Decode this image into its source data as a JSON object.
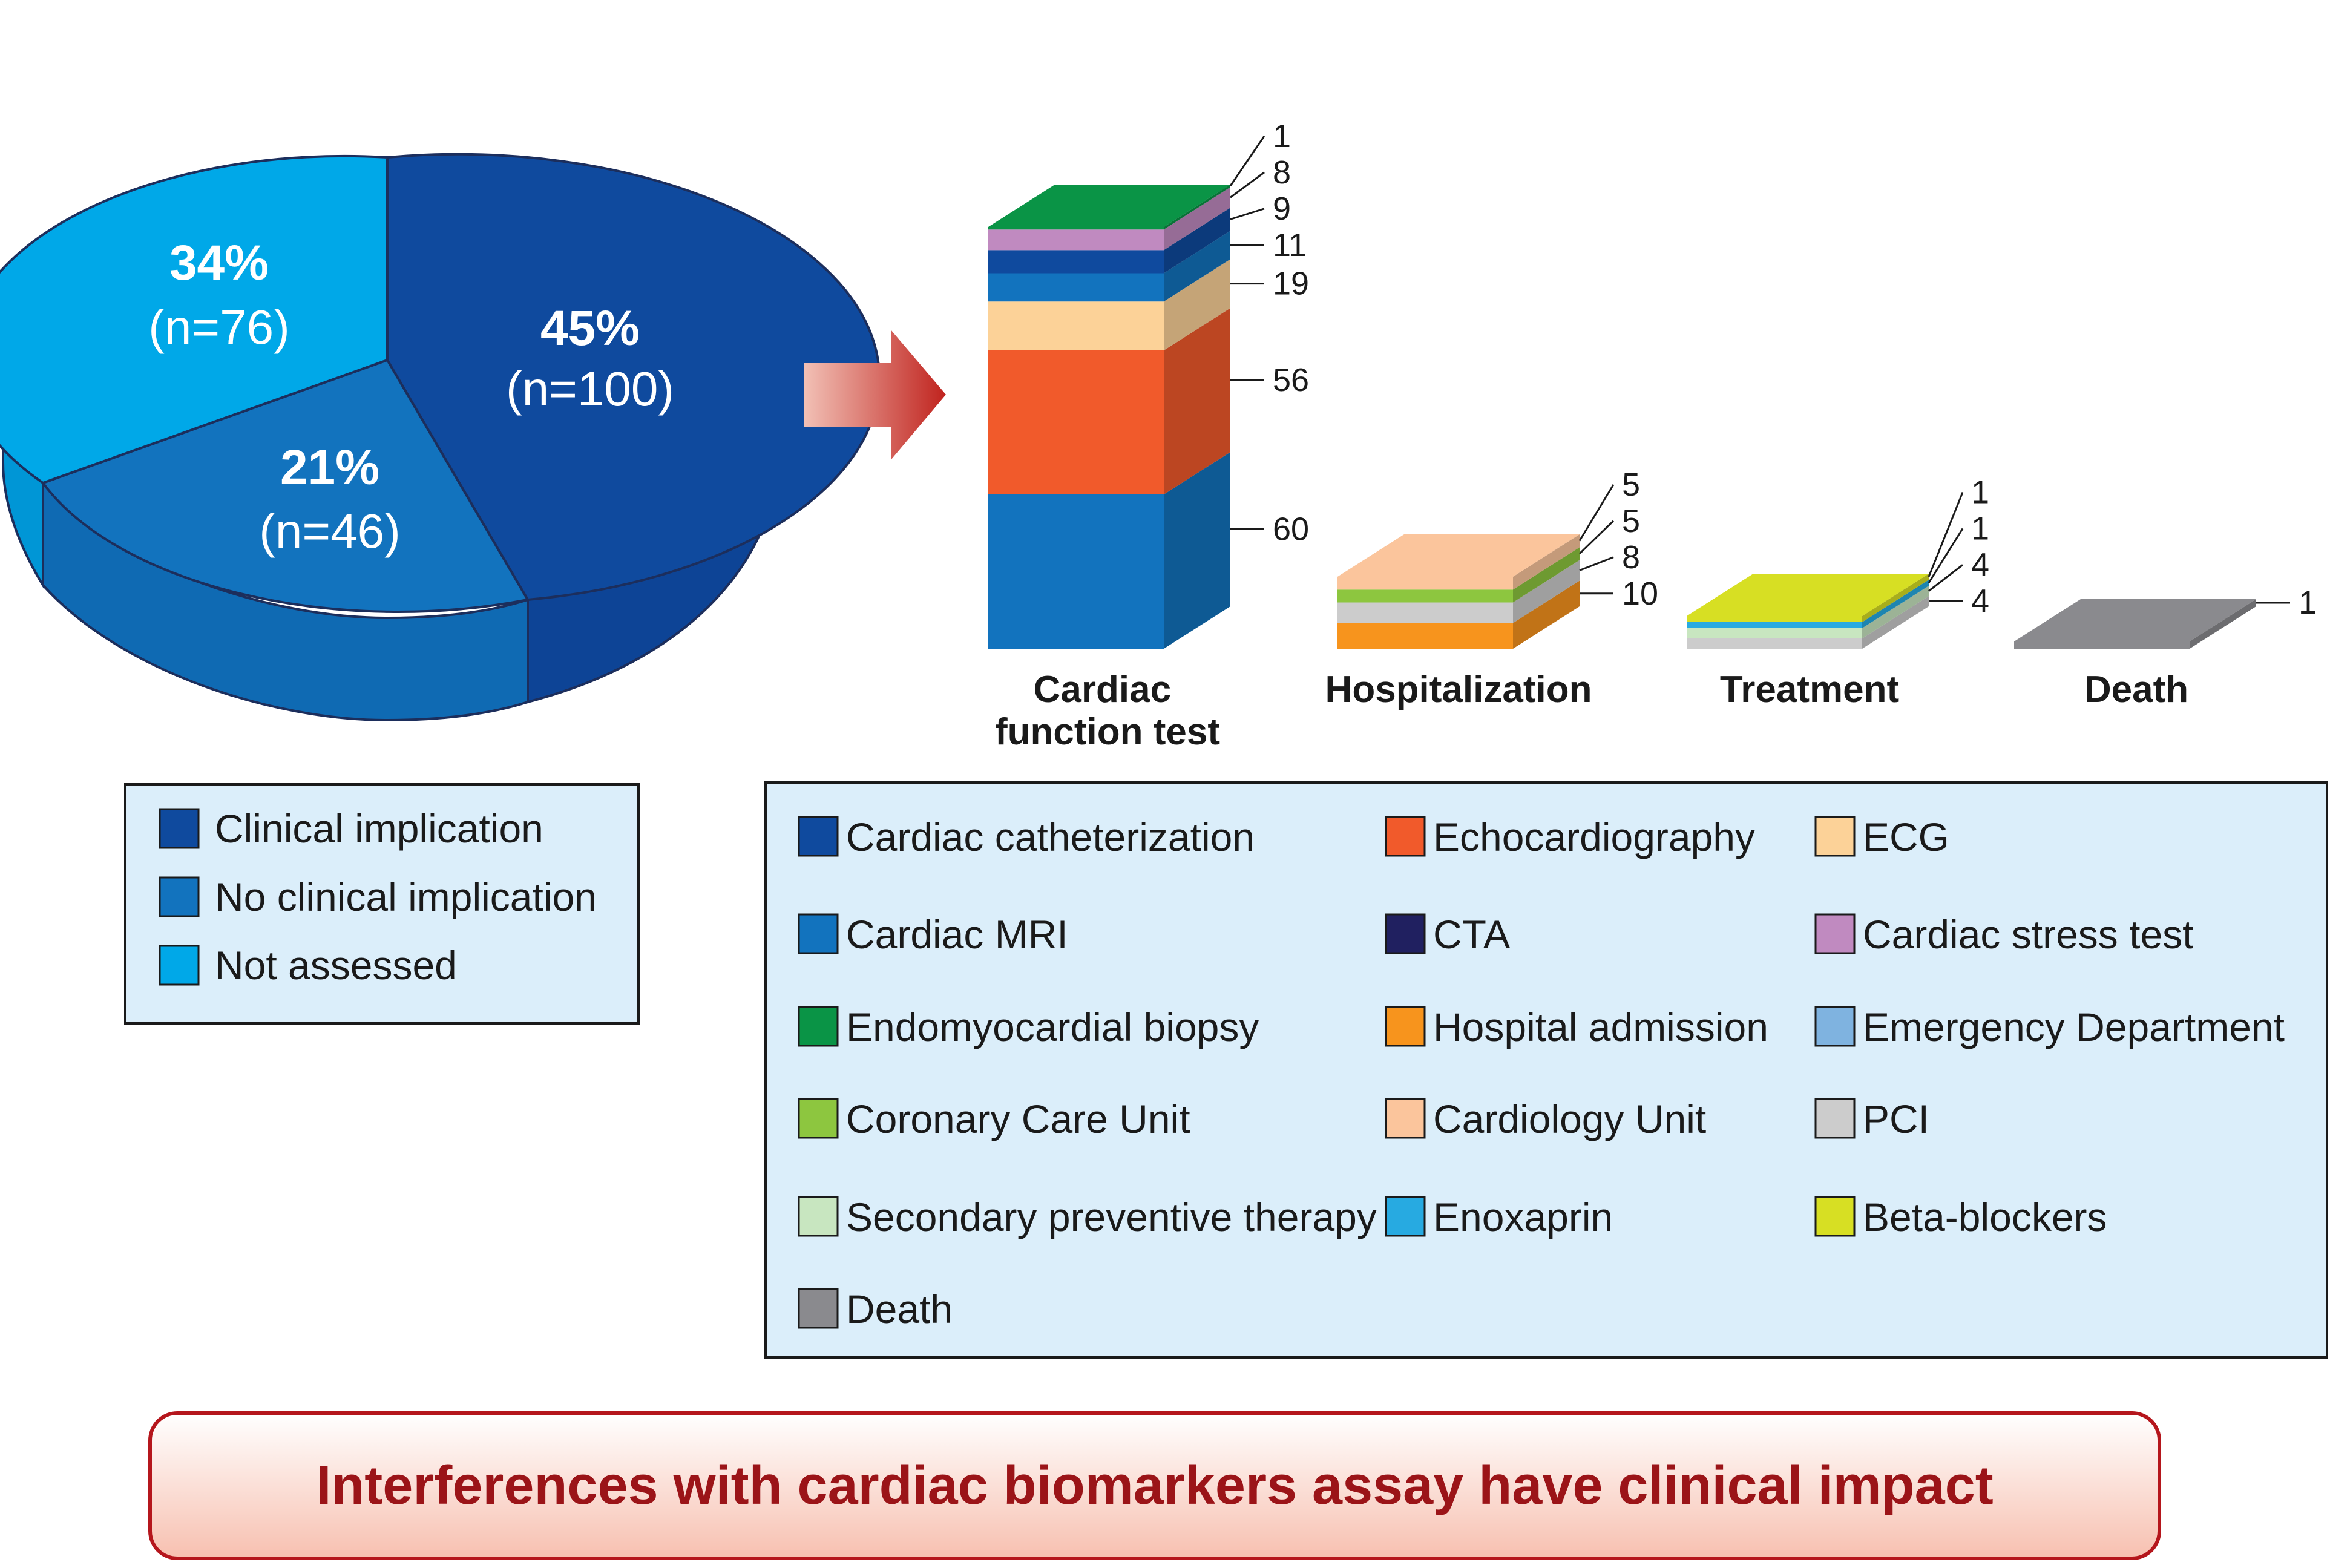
{
  "footer": {
    "text": "Interferences with cardiac biomarkers assay have clinical impact"
  },
  "chart_data": [
    {
      "type": "pie",
      "slices": [
        {
          "label": "Clinical implication",
          "percent": "45%",
          "n": "(n=100)",
          "value": 100,
          "color": "#0f4a9e"
        },
        {
          "label": "No clinical implication",
          "percent": "21%",
          "n": "(n=46)",
          "value": 46,
          "color": "#1273be"
        },
        {
          "label": "Not assessed",
          "percent": "34%",
          "n": "(n=76)",
          "value": 76,
          "color": "#00a8e8"
        }
      ]
    },
    {
      "type": "bar",
      "stacked": true,
      "categories": [
        {
          "label_lines": [
            "Cardiac",
            "function test"
          ]
        },
        {
          "label_lines": [
            "Hospitalization"
          ]
        },
        {
          "label_lines": [
            "Treatment"
          ]
        },
        {
          "label_lines": [
            "Death"
          ]
        }
      ],
      "series_by_category": [
        [
          {
            "name": "Cardiac MRI",
            "value": 60,
            "label": "60"
          },
          {
            "name": "Echocardiography",
            "value": 56,
            "label": "56"
          },
          {
            "name": "ECG",
            "value": 19,
            "label": "19"
          },
          {
            "name": "Cardiac MRI",
            "value": 11,
            "label": "11"
          },
          {
            "name": "Cardiac catheterization",
            "value": 9,
            "label": "9"
          },
          {
            "name": "Cardiac stress test",
            "value": 8,
            "label": "8"
          },
          {
            "name": "Endomyocardial biopsy",
            "value": 1,
            "label": "1"
          }
        ],
        [
          {
            "name": "Hospital admission",
            "value": 10,
            "label": "10"
          },
          {
            "name": "PCI",
            "value": 8,
            "label": "8"
          },
          {
            "name": "Coronary Care Unit",
            "value": 5,
            "label": "5"
          },
          {
            "name": "Cardiology Unit",
            "value": 5,
            "label": "5"
          }
        ],
        [
          {
            "name": "PCI",
            "value": 4,
            "label": "4"
          },
          {
            "name": "Secondary preventive therapy",
            "value": 4,
            "label": "4"
          },
          {
            "name": "Enoxaprin",
            "value": 1,
            "label": "1"
          },
          {
            "name": "Beta-blockers",
            "value": 1,
            "label": "1"
          }
        ],
        [
          {
            "name": "Death",
            "value": 1,
            "label": "1"
          }
        ]
      ],
      "legend": [
        {
          "name": "Cardiac catheterization",
          "color": "#0f4a9e"
        },
        {
          "name": "Echocardiography",
          "color": "#f15a2b"
        },
        {
          "name": "ECG",
          "color": "#fcd298"
        },
        {
          "name": "Cardiac MRI",
          "color": "#1273be"
        },
        {
          "name": "CTA",
          "color": "#202060"
        },
        {
          "name": "Cardiac stress test",
          "color": "#c08ac0"
        },
        {
          "name": "Endomyocardial biopsy",
          "color": "#0a9446"
        },
        {
          "name": "Hospital admission",
          "color": "#f7941d"
        },
        {
          "name": "Emergency Department",
          "color": "#7fb3e0"
        },
        {
          "name": "Coronary Care Unit",
          "color": "#8dc63f"
        },
        {
          "name": "Cardiology Unit",
          "color": "#fbc59c"
        },
        {
          "name": "PCI",
          "color": "#cccccc"
        },
        {
          "name": "Secondary preventive therapy",
          "color": "#c8e6c0"
        },
        {
          "name": "Enoxaprin",
          "color": "#27aae1"
        },
        {
          "name": "Beta-blockers",
          "color": "#d7df23"
        },
        {
          "name": "Death",
          "color": "#8a8a8e"
        }
      ]
    }
  ]
}
